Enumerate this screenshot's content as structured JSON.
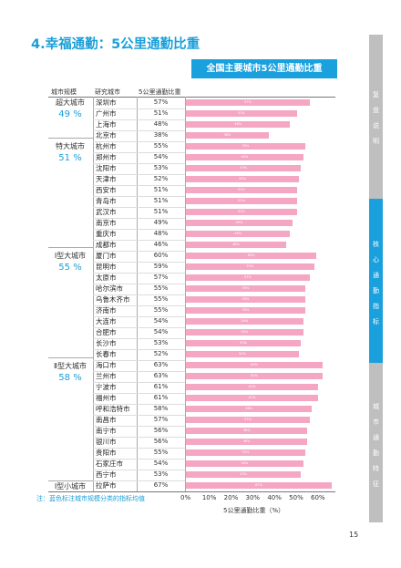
{
  "heading": "4.幸福通勤：5公里通勤比重",
  "banner": "全国主要城市5公里通勤比重",
  "columns": {
    "scale": "城市规模",
    "city": "研究城市",
    "share": "5公里通勤比重"
  },
  "groups": [
    {
      "name": "超大城市",
      "value": "49 %"
    },
    {
      "name": "特大城市",
      "value": "51 %"
    },
    {
      "name": "Ⅰ型大城市",
      "value": "55 %"
    },
    {
      "name": "Ⅱ型大城市",
      "value": "58 %"
    },
    {
      "name": "Ⅰ型小城市",
      "value": ""
    }
  ],
  "axis": {
    "ticks": [
      "0%",
      "10%",
      "20%",
      "30%",
      "40%",
      "50%",
      "60%"
    ],
    "title": "5公里通勤比重（%）"
  },
  "note": "注：蓝色标注城市规模分类的指标均值",
  "page_number": "15",
  "side_tabs": [
    "复盘说明",
    "核心通勤指标",
    "城市通勤特征"
  ],
  "colors": {
    "accent": "#1a9fd8",
    "bar": "#f4a6c3",
    "side_tab": "#bfbfbf",
    "side_tab_active": "#19a0dd"
  },
  "chart_data": {
    "type": "bar",
    "orientation": "horizontal",
    "xlabel": "5公里通勤比重（%）",
    "xlim": [
      0,
      70
    ],
    "categories": [
      "深圳市",
      "广州市",
      "上海市",
      "北京市",
      "杭州市",
      "郑州市",
      "沈阳市",
      "天津市",
      "西安市",
      "青岛市",
      "武汉市",
      "南京市",
      "重庆市",
      "成都市",
      "厦门市",
      "昆明市",
      "太原市",
      "哈尔滨市",
      "乌鲁木齐市",
      "济南市",
      "大连市",
      "合肥市",
      "长沙市",
      "长春市",
      "海口市",
      "兰州市",
      "宁波市",
      "福州市",
      "呼和浩特市",
      "南昌市",
      "南宁市",
      "银川市",
      "贵阳市",
      "石家庄市",
      "西宁市",
      "拉萨市"
    ],
    "values": [
      57,
      51,
      48,
      38,
      55,
      54,
      53,
      52,
      51,
      51,
      51,
      49,
      48,
      46,
      60,
      59,
      57,
      55,
      55,
      55,
      54,
      54,
      53,
      52,
      63,
      63,
      61,
      61,
      58,
      57,
      56,
      56,
      55,
      54,
      53,
      67
    ],
    "value_labels": [
      "57%",
      "51%",
      "48%",
      "38%",
      "55%",
      "54%",
      "53%",
      "52%",
      "51%",
      "51%",
      "51%",
      "49%",
      "48%",
      "46%",
      "60%",
      "59%",
      "57%",
      "55%",
      "55%",
      "55%",
      "54%",
      "54%",
      "53%",
      "52%",
      "63%",
      "63%",
      "61%",
      "61%",
      "58%",
      "57%",
      "56%",
      "56%",
      "55%",
      "54%",
      "53%",
      "67%"
    ]
  }
}
